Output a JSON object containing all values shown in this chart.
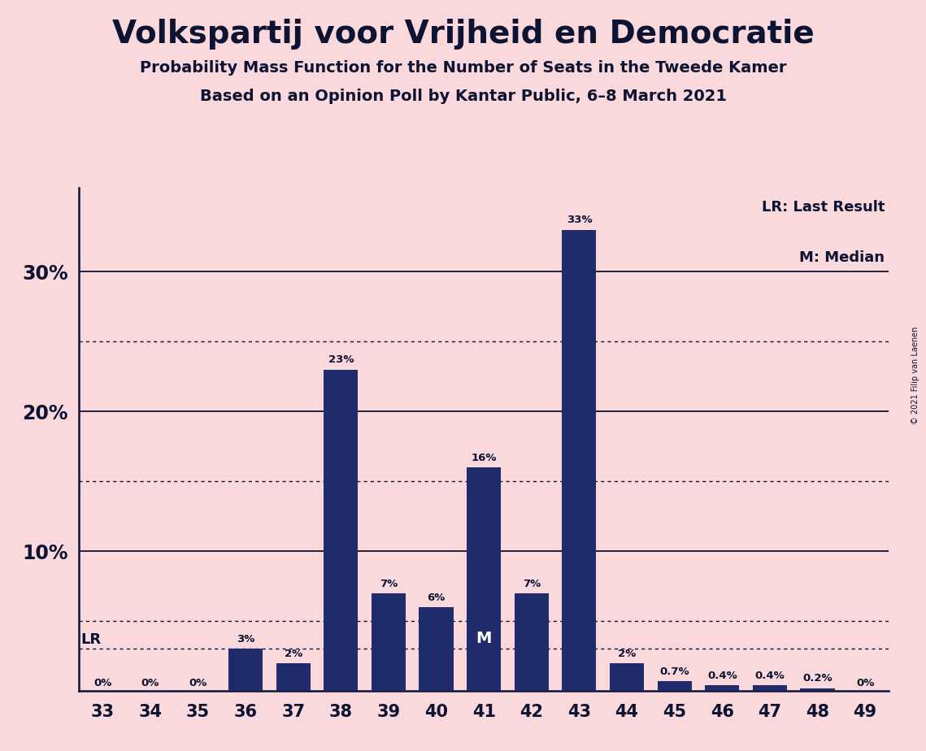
{
  "title": "Volkspartij voor Vrijheid en Democratie",
  "subtitle1": "Probability Mass Function for the Number of Seats in the Tweede Kamer",
  "subtitle2": "Based on an Opinion Poll by Kantar Public, 6–8 March 2021",
  "copyright": "© 2021 Filip van Laenen",
  "background_color": "#FAD9DC",
  "bar_color": "#1F2B6B",
  "text_color": "#0D1333",
  "categories": [
    33,
    34,
    35,
    36,
    37,
    38,
    39,
    40,
    41,
    42,
    43,
    44,
    45,
    46,
    47,
    48,
    49
  ],
  "values": [
    0.0,
    0.0,
    0.0,
    3.0,
    2.0,
    23.0,
    7.0,
    6.0,
    16.0,
    7.0,
    33.0,
    2.0,
    0.7,
    0.4,
    0.4,
    0.2,
    0.0
  ],
  "labels": [
    "0%",
    "0%",
    "0%",
    "3%",
    "2%",
    "23%",
    "7%",
    "6%",
    "16%",
    "7%",
    "33%",
    "2%",
    "0.7%",
    "0.4%",
    "0.4%",
    "0.2%",
    "0%"
  ],
  "lr_seat": 33,
  "lr_value": 3.0,
  "median_seat": 41,
  "ylim": [
    0,
    36
  ],
  "yticks": [
    10,
    20,
    30
  ],
  "ytick_labels": [
    "10%",
    "20%",
    "30%"
  ],
  "solid_grid": [
    10,
    20,
    30
  ],
  "dotted_grid": [
    5,
    15,
    25
  ],
  "lr_line": 3.0
}
